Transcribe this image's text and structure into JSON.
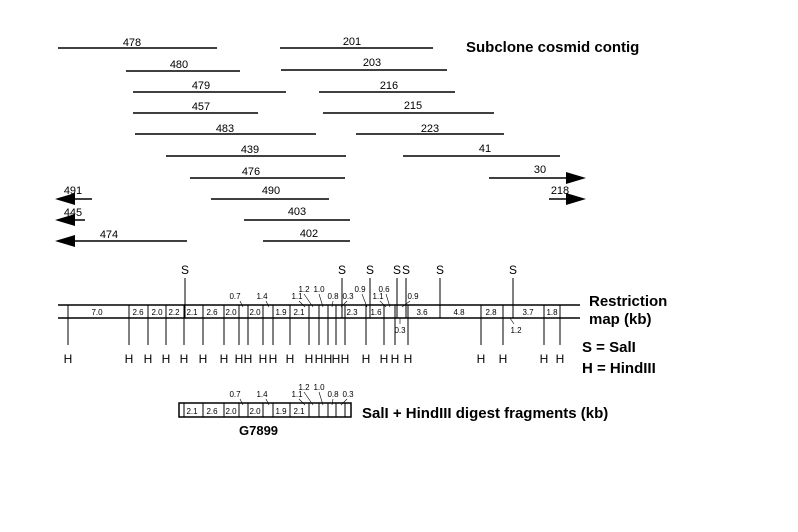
{
  "titles": {
    "contig": "Subclone cosmid contig",
    "restriction_1": "Restriction",
    "restriction_2": "map  (kb)",
    "legend_s": "S = SalI",
    "legend_h": "H = HindIII",
    "digest": "SalI + HindIII digest fragments (kb)",
    "clone_label": "G7899"
  },
  "cosmids": [
    "478",
    "480",
    "479",
    "457",
    "483",
    "439",
    "476",
    "491",
    "445",
    "474",
    "201",
    "203",
    "216",
    "215",
    "223",
    "41",
    "30",
    "218",
    "490",
    "403",
    "402"
  ],
  "site_letters": {
    "sal": "S",
    "hind": "H"
  },
  "map_fragments_top": [
    "0.7",
    "1.4",
    "1.2",
    "1.0",
    "1.1",
    "0.8",
    "0.3",
    "0.9",
    "0.6",
    "1.1",
    "0.9"
  ],
  "map_fragments_mid": [
    "7.0",
    "2.6",
    "2.0",
    "2.2",
    "2.1",
    "2.6",
    "2.0",
    "2.0",
    "1.9",
    "2.1",
    "2.3",
    "1.6",
    "3.6",
    "4.8",
    "2.8",
    "3.7",
    "1.8"
  ],
  "map_fragments_bottom": [
    "0.3",
    "1.2"
  ],
  "digest_top": [
    "0.7",
    "1.4",
    "1.2",
    "1.0",
    "1.1",
    "0.8",
    "0.3"
  ],
  "digest_mid": [
    "2.1",
    "2.6",
    "2.0",
    "2.0",
    "1.9",
    "2.1"
  ]
}
